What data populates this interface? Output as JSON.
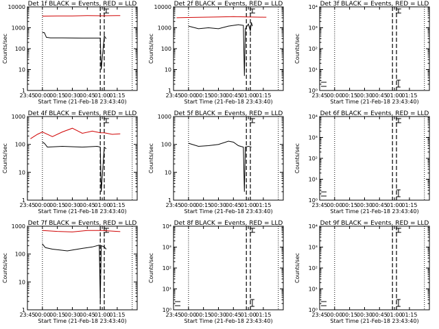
{
  "panel_title_suffix": "BLACK = Events, RED = LLD",
  "xlabel": "Start Time (21-Feb-18 23:43:40)",
  "ylabel": "Counts/sec",
  "x_ticks": [
    "23:45",
    "00:00",
    "00:15",
    "00:30",
    "00:45",
    "01:00",
    "01:15"
  ],
  "y_ticks_linear": [
    "1",
    "10",
    "100",
    "1000",
    "10000"
  ],
  "y_ticks_exp": [
    "10⁰",
    "10¹",
    "10²",
    "10³",
    "10⁴"
  ],
  "colors": {
    "events": "#000000",
    "lld": "#d00000",
    "frame": "#000000"
  },
  "chart_data": [
    {
      "type": "line",
      "title": "Det 1f BLACK = Events, RED = LLD",
      "tick_style": "linear",
      "ylim": [
        1,
        10000
      ],
      "yscale": "log",
      "series": [
        {
          "name": "LLD",
          "x_min": [
            0,
            15,
            30,
            45,
            60,
            75,
            78
          ],
          "y": [
            3600,
            3700,
            3700,
            3800,
            3750,
            3800,
            3800
          ]
        },
        {
          "name": "Events",
          "x_min": [
            0,
            2,
            4,
            8,
            20,
            40,
            50,
            58,
            59,
            62,
            64
          ],
          "y": [
            600,
            580,
            350,
            330,
            330,
            320,
            320,
            320,
            10,
            400,
            300
          ]
        }
      ]
    },
    {
      "type": "line",
      "title": "Det 2f BLACK = Events, RED = LLD",
      "tick_style": "linear",
      "ylim": [
        1,
        10000
      ],
      "yscale": "log",
      "series": [
        {
          "name": "LLD",
          "x_min": [
            -12,
            0,
            15,
            30,
            45,
            60,
            75,
            78
          ],
          "y": [
            3000,
            3100,
            3200,
            3300,
            3400,
            3300,
            3200,
            3200
          ]
        },
        {
          "name": "Events",
          "x_min": [
            0,
            10,
            20,
            30,
            40,
            50,
            55,
            56,
            57,
            60,
            62,
            63,
            64
          ],
          "y": [
            1200,
            900,
            1000,
            900,
            1200,
            1400,
            1300,
            5,
            900,
            1500,
            700,
            1800,
            1200
          ]
        }
      ]
    },
    {
      "type": "line",
      "title": "Det 3f BLACK = Events, RED = LLD",
      "tick_style": "exp",
      "ylim": [
        1,
        10000
      ],
      "yscale": "log",
      "series": []
    },
    {
      "type": "line",
      "title": "Det 4f BLACK = Events, RED = LLD",
      "tick_style": "linear",
      "ylim": [
        1,
        1000
      ],
      "yscale": "log",
      "series": [
        {
          "name": "LLD",
          "x_min": [
            -12,
            -5,
            0,
            10,
            20,
            30,
            40,
            50,
            58,
            62,
            70,
            78
          ],
          "y": [
            160,
            230,
            280,
            190,
            280,
            380,
            250,
            300,
            260,
            260,
            230,
            240
          ]
        },
        {
          "name": "Events",
          "x_min": [
            0,
            2,
            5,
            20,
            40,
            55,
            58,
            59,
            62,
            64
          ],
          "y": [
            120,
            110,
            80,
            85,
            80,
            85,
            80,
            2,
            80,
            70
          ]
        }
      ]
    },
    {
      "type": "line",
      "title": "Det 5f BLACK = Events, RED = LLD",
      "tick_style": "linear",
      "ylim": [
        1,
        1000
      ],
      "yscale": "log",
      "series": [
        {
          "name": "Events",
          "x_min": [
            0,
            10,
            20,
            30,
            40,
            45,
            50,
            55,
            56,
            57,
            60,
            63
          ],
          "y": [
            110,
            85,
            90,
            100,
            130,
            120,
            90,
            80,
            2,
            80,
            85,
            80
          ]
        }
      ]
    },
    {
      "type": "line",
      "title": "Det 6f BLACK = Events, RED = LLD",
      "tick_style": "exp",
      "ylim": [
        1,
        10000
      ],
      "yscale": "log",
      "series": []
    },
    {
      "type": "line",
      "title": "Det 7f BLACK = Events, RED = LLD",
      "tick_style": "linear",
      "ylim": [
        1,
        1000
      ],
      "yscale": "log",
      "series": [
        {
          "name": "LLD",
          "x_min": [
            0,
            15,
            30,
            45,
            60,
            75,
            78
          ],
          "y": [
            700,
            650,
            620,
            700,
            700,
            650,
            640
          ]
        },
        {
          "name": "Events",
          "x_min": [
            0,
            3,
            10,
            25,
            40,
            50,
            57,
            58,
            59,
            62,
            64
          ],
          "y": [
            230,
            170,
            150,
            130,
            160,
            180,
            210,
            2,
            200,
            180,
            150
          ]
        }
      ]
    },
    {
      "type": "line",
      "title": "Det 8f BLACK = Events, RED = LLD",
      "tick_style": "exp",
      "ylim": [
        1,
        10000
      ],
      "yscale": "log",
      "series": []
    },
    {
      "type": "line",
      "title": "Det 9f BLACK = Events, RED = LLD",
      "tick_style": "exp",
      "ylim": [
        1,
        10000
      ],
      "yscale": "log",
      "series": []
    }
  ]
}
